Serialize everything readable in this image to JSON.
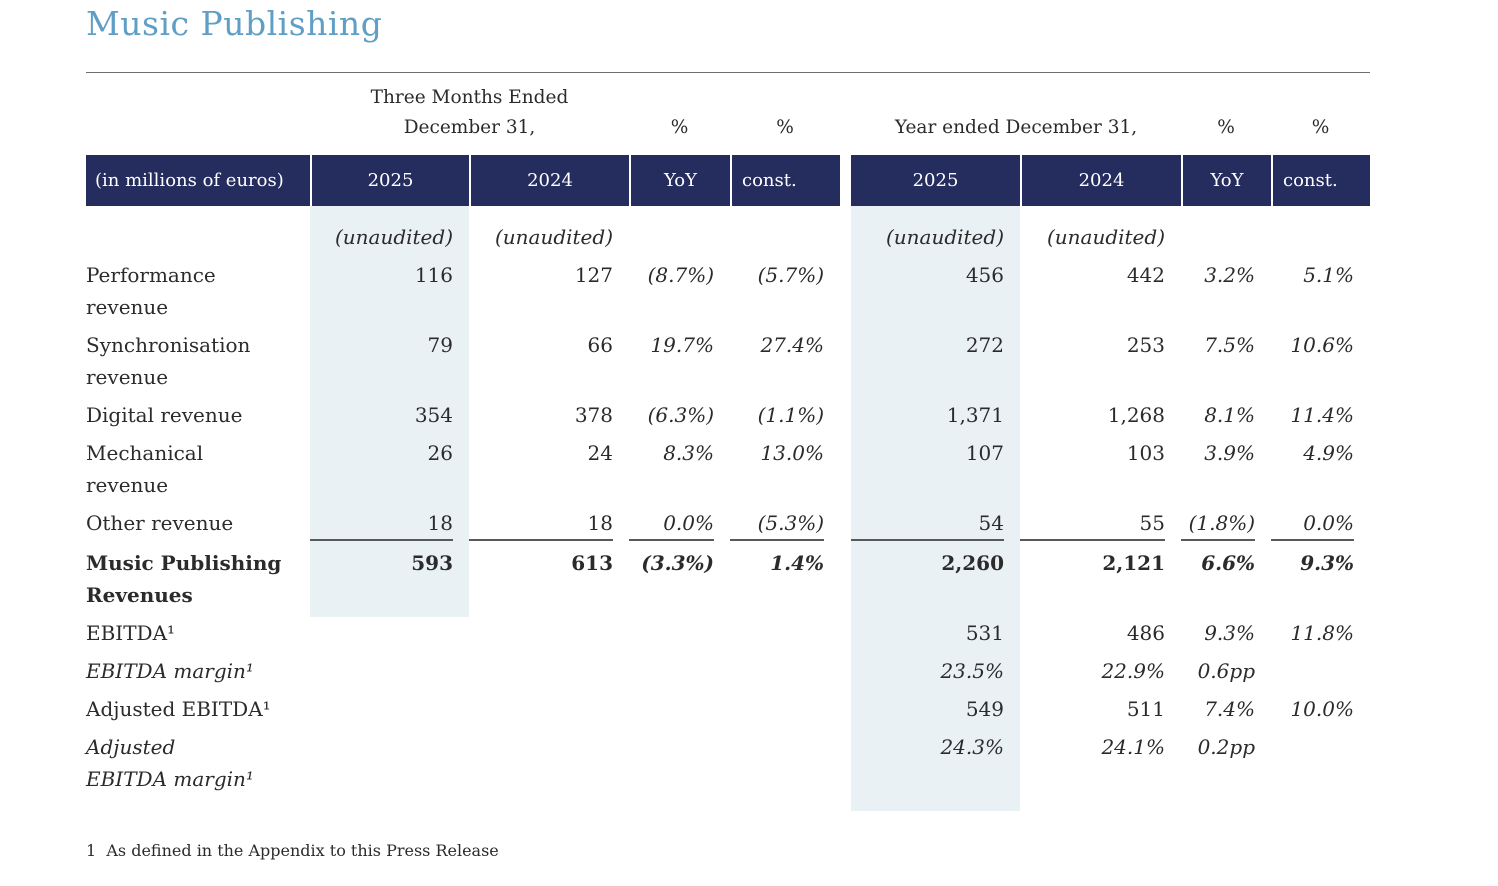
{
  "title": "Music Publishing",
  "header": {
    "unit_label": "(in millions of euros)",
    "three_months": {
      "line1": "Three Months Ended",
      "line2": "December 31,",
      "pct_yoy": "%",
      "pct_const": "%"
    },
    "year_ended": {
      "title": "Year ended December 31,",
      "pct_yoy": "%",
      "pct_const": "%"
    },
    "columns": [
      "2025",
      "2024",
      "YoY",
      "const.",
      "2025",
      "2024",
      "YoY",
      "const."
    ]
  },
  "table": {
    "rows": [
      {
        "label": "",
        "shaded_left": true,
        "cells": [
          "(unaudited)",
          "(unaudited)",
          "",
          "",
          "(unaudited)",
          "(unaudited)",
          "",
          ""
        ]
      },
      {
        "label": "Performance\nrevenue",
        "shaded_left": true,
        "cells": [
          "116",
          "127",
          "(8.7%)",
          "(5.7%)",
          "456",
          "442",
          "3.2%",
          "5.1%"
        ]
      },
      {
        "label": "Synchronisation\nrevenue",
        "shaded_left": true,
        "cells": [
          "79",
          "66",
          "19.7%",
          "27.4%",
          "272",
          "253",
          "7.5%",
          "10.6%"
        ]
      },
      {
        "label": "Digital revenue",
        "shaded_left": true,
        "cells": [
          "354",
          "378",
          "(6.3%)",
          "(1.1%)",
          "1,371",
          "1,268",
          "8.1%",
          "11.4%"
        ]
      },
      {
        "label": "Mechanical\nrevenue",
        "shaded_left": true,
        "cells": [
          "26",
          "24",
          "8.3%",
          "13.0%",
          "107",
          "103",
          "3.9%",
          "4.9%"
        ]
      },
      {
        "label": "Other revenue",
        "shaded_left": true,
        "rule_below": true,
        "cells": [
          "18",
          "18",
          "0.0%",
          "(5.3%)",
          "54",
          "55",
          "(1.8%)",
          "0.0%"
        ]
      },
      {
        "label": "Music Publishing\nRevenues",
        "shaded_left": true,
        "bold": true,
        "cells": [
          "593",
          "613",
          "(3.3%)",
          "1.4%",
          "2,260",
          "2,121",
          "6.6%",
          "9.3%"
        ]
      },
      {
        "label": "EBITDA¹",
        "shaded_left": false,
        "cells": [
          "",
          "",
          "",
          "",
          "531",
          "486",
          "9.3%",
          "11.8%"
        ]
      },
      {
        "label": "EBITDA margin¹",
        "shaded_left": false,
        "italic_label": true,
        "cells": [
          "",
          "",
          "",
          "",
          "23.5%",
          "22.9%",
          "0.6pp",
          ""
        ]
      },
      {
        "label": "Adjusted EBITDA¹",
        "shaded_left": false,
        "cells": [
          "",
          "",
          "",
          "",
          "549",
          "511",
          "7.4%",
          "10.0%"
        ]
      },
      {
        "label": "Adjusted\nEBITDA margin¹",
        "shaded_left": false,
        "italic_label": true,
        "cells": [
          "",
          "",
          "",
          "",
          "24.3%",
          "24.1%",
          "0.2pp",
          ""
        ]
      }
    ]
  },
  "footnote": "1  As defined in the Appendix to this Press Release",
  "colors": {
    "title_accent": "#5f9fc5",
    "header_bg": "#252c5e",
    "header_text": "#ffffff",
    "column_shade": "#e9f1f5",
    "body_text": "#2b2b2b",
    "rule_gray": "#6e6e6e",
    "subtotal_rule": "#58595b"
  }
}
